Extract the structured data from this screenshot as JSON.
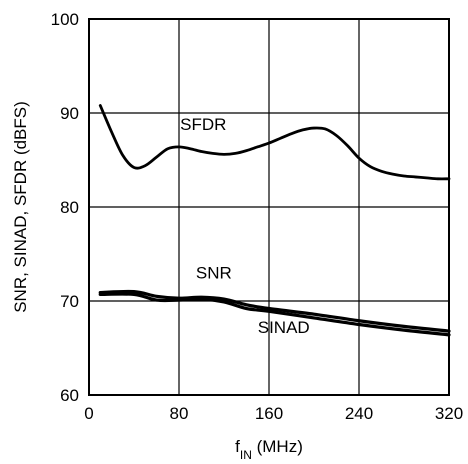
{
  "chart_data": {
    "type": "line",
    "title": "",
    "ylabel": "SNR, SINAD, SFDR (dBFS)",
    "xlabel": {
      "main": "f",
      "sub": "IN",
      "rest": " (MHz)"
    },
    "xlim": [
      0,
      320
    ],
    "ylim": [
      60,
      100
    ],
    "xticks": [
      "0",
      "80",
      "160",
      "240",
      "320"
    ],
    "yticks": [
      "60",
      "70",
      "80",
      "90",
      "100"
    ],
    "grid": true,
    "legend": "none",
    "series": [
      {
        "name": "SFDR",
        "color": "#000000",
        "x": [
          10,
          20,
          30,
          40,
          50,
          60,
          70,
          80,
          90,
          100,
          110,
          120,
          130,
          140,
          150,
          160,
          170,
          180,
          190,
          200,
          210,
          220,
          230,
          240,
          250,
          260,
          270,
          280,
          290,
          300,
          310,
          320
        ],
        "y": [
          90.8,
          88.0,
          85.5,
          84.2,
          84.4,
          85.3,
          86.2,
          86.4,
          86.2,
          85.9,
          85.7,
          85.6,
          85.7,
          86.0,
          86.4,
          86.8,
          87.3,
          87.8,
          88.2,
          88.4,
          88.3,
          87.6,
          86.5,
          85.2,
          84.3,
          83.8,
          83.5,
          83.3,
          83.2,
          83.1,
          83.0,
          83.0
        ]
      },
      {
        "name": "SNR",
        "color": "#000000",
        "x": [
          10,
          40,
          60,
          80,
          100,
          120,
          140,
          160,
          200,
          240,
          280,
          320
        ],
        "y": [
          70.9,
          71.0,
          70.5,
          70.3,
          70.4,
          70.2,
          69.6,
          69.2,
          68.6,
          67.9,
          67.3,
          66.8
        ]
      },
      {
        "name": "SINAD",
        "color": "#000000",
        "x": [
          10,
          40,
          60,
          80,
          100,
          120,
          140,
          160,
          200,
          240,
          280,
          320
        ],
        "y": [
          70.7,
          70.7,
          70.1,
          70.1,
          70.2,
          69.9,
          69.2,
          68.9,
          68.2,
          67.5,
          66.9,
          66.4
        ]
      }
    ]
  }
}
